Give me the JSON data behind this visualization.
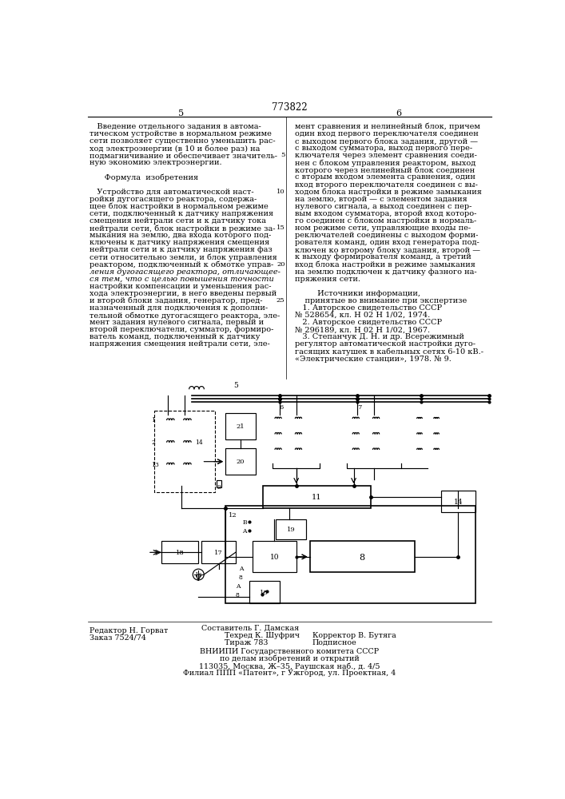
{
  "title_number": "773822",
  "page_left": "5",
  "page_right": "6",
  "text_left_col": [
    "   Введение отдельного задания в автома-",
    "тическом устройстве в нормальном режиме",
    "сети позволяет существенно уменьшить рас-",
    "ход электроэнергии (в 10 и более раз) на",
    "подмагничивание и обеспечивает значитель-",
    "ную экономию электроэнергии.",
    "",
    "      Формула  изобретения",
    "",
    "   Устройство для автоматической наст-",
    "ройки дугогасящего реактора, содержа-",
    "щее блок настройки в нормальном режиме",
    "сети, подключенный к датчику напряжения",
    "смещения нейтрали сети и к датчику тока",
    "нейтрали сети, блок настройки в режиме за-",
    "мыкания на землю, два входа которого под-",
    "ключены к датчику напряжения смещения",
    "нейтрали сети и к датчику напряжения фаз",
    "сети относительно земли, и блок управления",
    "реактором, подключенный к обмотке управ-",
    "ления дугогасящего реактора, отличающее-",
    "ся тем, что с целью повышения точности",
    "настройки компенсации и уменьшения рас-",
    "хода электроэнергии, в него введены первый",
    "и второй блоки задания, генератор, пред-",
    "назначенный для подключения к дополни-",
    "тельной обмотке дугогасящего реактора, эле-",
    "мент задания нулевого сигнала, первый и",
    "второй переключатели, сумматор, формиро-",
    "ватель команд, подключенный к датчику",
    "напряжения смещения нейтрали сети, эле-"
  ],
  "text_right_col": [
    "мент сравнения и нелинейный блок, причем",
    "один вход первого переключателя соединен",
    "с выходом первого блока задания, другой —",
    "с выходом сумматора, выход первого пере-",
    "ключателя через элемент сравнения соеди-",
    "нен с блоком управления реактором, выход",
    "которого через нелинейный блок соединен",
    "с вторым входом элемента сравнения, один",
    "вход второго переключателя соединен с вы-",
    "ходом блока настройки в режиме замыкания",
    "на землю, второй — с элементом задания",
    "нулевого сигнала, а выход соединен с пер-",
    "вым входом сумматора, второй вход которо-",
    "го соединен с блоком настройки в нормаль-",
    "ном режиме сети, управляющие входы пе-",
    "реключателей соединены с выходом форми-",
    "рователя команд, один вход генератора под-",
    "ключен ко второму блоку задания, второй —",
    "к выходу формирователя команд, а третий",
    "вход блока настройки в режиме замыкания",
    "на землю подключен к датчику фазного на-",
    "пряжения сети.",
    "",
    "         Источники информации,",
    "    принятые во внимание при экспертизе",
    "   1. Авторское свидетельство СССР",
    "№ 528654, кл. Н 02 Н 1/02, 1974.",
    "   2. Авторское свидетельство СССР",
    "№ 296189, кл. Н 02 Н 1/02, 1967.",
    "   3. Степанчук Д. Н. и др. Всережимный",
    "регулятор автоматической настройки дуго-",
    "гасящих катушек в кабельных сетях 6-10 кВ.-",
    "«Электрические станции», 1978. № 9."
  ],
  "footer_left": [
    "Редактор Н. Горват",
    "Заказ 7524/74"
  ],
  "footer_center_line1": "Составитель Г. Дамская",
  "footer_center_line2": "Техред К. Шуфрич",
  "footer_center_line3": "Тираж 783",
  "footer_right_line2": "Корректор В. Бутяга",
  "footer_right_line3": "Подписное",
  "footer_bottom": [
    "ВНИИПИ Государственного комитета СССР",
    "по делам изобретений и открытий",
    "113035, Москва, Ж–35, Раушская наб., д. 4/5",
    "Филиал ППП «Патент», г Ужгород, ул. Проектная, 4"
  ],
  "bg_color": "#ffffff",
  "text_color": "#000000"
}
